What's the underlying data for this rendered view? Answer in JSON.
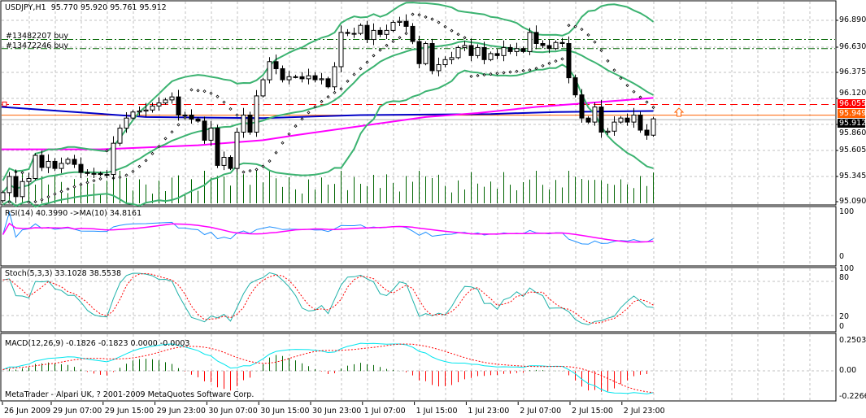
{
  "header": {
    "symbol_timeframe": "USDJPY,H1",
    "ohlc_readout": "95.770 95.920 95.761 95.912"
  },
  "orders": [
    {
      "label": "#13482207 buy",
      "price": 96.7
    },
    {
      "label": "#13472246 buy",
      "price": 96.61
    }
  ],
  "price_axis": {
    "ticks": [
      "96.890",
      "96.630",
      "96.375",
      "96.120",
      "95.860",
      "95.605",
      "95.345",
      "95.090"
    ],
    "tags": {
      "stop_level": "96.055",
      "ask": "95.949",
      "bid": "95.912"
    }
  },
  "indicators": {
    "rsi": {
      "label": "RSI(14) 40.3990  ->MA(10) 34.8161",
      "ticks": [
        "100",
        "0"
      ]
    },
    "stoch": {
      "label": "Stoch(5,3,3) 33.1028 38.5538",
      "ticks": [
        "100",
        "80",
        "20",
        "0"
      ]
    },
    "macd": {
      "label": "MACD(12,26,9) -0.1826 -0.1823 0.0000 -0.0003",
      "ticks": [
        "0.2503",
        "0.00",
        "-0.2266"
      ]
    }
  },
  "footer": {
    "copyright": "MetaTrader - Alpari UK, ? 2001-2009 MetaQuotes Software Corp."
  },
  "time_axis": [
    "26 Jun 2009",
    "29 Jun 07:00",
    "29 Jun 15:00",
    "29 Jun 23:00",
    "30 Jun 07:00",
    "30 Jun 15:00",
    "30 Jun 23:00",
    "1 Jul 07:00",
    "1 Jul 15:00",
    "1 Jul 23:00",
    "2 Jul 07:00",
    "2 Jul 15:00",
    "2 Jul 23:00"
  ],
  "colors": {
    "bands": "#3cb371",
    "ma_long": "#0000c8",
    "ma_short": "#ff00ff",
    "stop_line": "#ff0000",
    "ask_line": "#ff6000",
    "order_line": "#006400",
    "volume": "#006400",
    "rsi": "#1e90ff",
    "stoch_main": "#20b2aa",
    "macd_main": "#00e5ee",
    "signal": "#ff0000"
  },
  "chart_data": {
    "type": "candlestick",
    "symbol": "USDJPY",
    "timeframe": "H1",
    "ylim": [
      95.09,
      96.89
    ],
    "first_open": 95.1,
    "closes": [
      95.18,
      95.34,
      95.14,
      95.29,
      95.32,
      95.55,
      95.43,
      95.49,
      95.42,
      95.47,
      95.51,
      95.46,
      95.38,
      95.37,
      95.37,
      95.36,
      95.36,
      95.67,
      95.82,
      95.92,
      95.98,
      95.99,
      96.0,
      96.04,
      96.07,
      96.1,
      96.13,
      95.95,
      95.95,
      95.91,
      95.89,
      95.7,
      95.82,
      95.45,
      95.53,
      95.42,
      95.78,
      95.95,
      95.78,
      96.14,
      96.3,
      96.48,
      96.41,
      96.3,
      96.33,
      96.33,
      96.31,
      96.34,
      96.3,
      96.31,
      96.23,
      96.43,
      96.77,
      96.76,
      96.76,
      96.84,
      96.7,
      96.79,
      96.75,
      96.79,
      96.87,
      96.88,
      96.83,
      96.68,
      96.46,
      96.66,
      96.39,
      96.45,
      96.5,
      96.52,
      96.62,
      96.64,
      96.54,
      96.62,
      96.5,
      96.56,
      96.54,
      96.62,
      96.58,
      96.61,
      96.58,
      96.77,
      96.66,
      96.64,
      96.61,
      96.67,
      96.66,
      96.32,
      96.15,
      95.92,
      95.88,
      96.03,
      95.78,
      95.79,
      95.88,
      95.92,
      95.88,
      95.95,
      95.8,
      95.75,
      95.912
    ],
    "ma_long_points": [
      [
        0,
        96.03
      ],
      [
        22,
        95.93
      ],
      [
        40,
        95.92
      ],
      [
        55,
        95.95
      ],
      [
        75,
        95.96
      ],
      [
        85,
        95.98
      ],
      [
        100,
        95.99
      ]
    ],
    "ma_short_points": [
      [
        0,
        95.61
      ],
      [
        15,
        95.61
      ],
      [
        30,
        95.65
      ],
      [
        40,
        95.7
      ],
      [
        45,
        95.75
      ],
      [
        65,
        95.93
      ],
      [
        73,
        95.97
      ],
      [
        82,
        96.03
      ],
      [
        90,
        96.07
      ],
      [
        100,
        96.12
      ]
    ],
    "levels": {
      "stop_level": 96.055,
      "ask": 95.949,
      "bid": 95.912
    },
    "rsi_range": [
      0,
      100
    ],
    "stoch_range": [
      0,
      100
    ],
    "macd_range": [
      -0.2266,
      0.2503
    ]
  }
}
